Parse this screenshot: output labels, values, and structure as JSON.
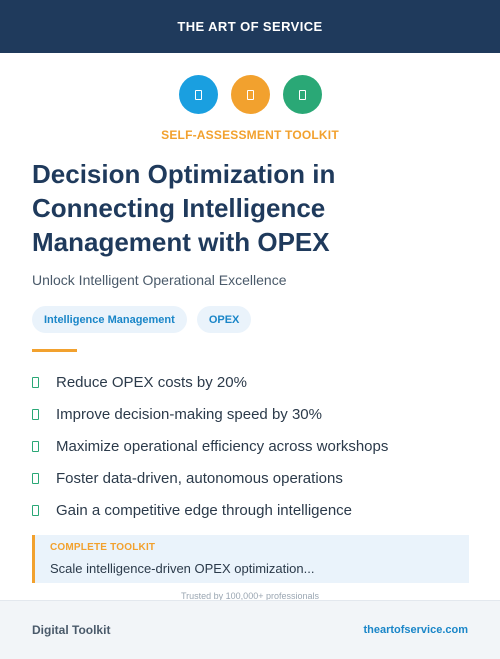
{
  "header": {
    "brand": "THE ART OF SERVICE"
  },
  "icons": [
    {
      "name": "document-icon",
      "color": "#1a9fe0"
    },
    {
      "name": "document-icon",
      "color": "#f2a12e"
    },
    {
      "name": "document-icon",
      "color": "#2aa876"
    }
  ],
  "eyebrow": "SELF-ASSESSMENT TOOLKIT",
  "title_lines": [
    "Decision Optimization in",
    "Connecting Intelligence",
    "Management with OPEX"
  ],
  "subtitle": "Unlock Intelligent Operational Excellence",
  "tags": [
    "Intelligence Management",
    "OPEX"
  ],
  "benefits": [
    "Reduce OPEX costs by 20%",
    "Improve decision-making speed by 30%",
    "Maximize operational efficiency across workshops",
    "Foster data-driven, autonomous operations",
    "Gain a competitive edge through intelligence"
  ],
  "callout": {
    "label": "COMPLETE TOOLKIT",
    "text": "Scale intelligence-driven OPEX optimization..."
  },
  "trusted": "Trusted by 100,000+ professionals",
  "footer": {
    "left": "Digital Toolkit",
    "right": "theartofservice.com"
  }
}
